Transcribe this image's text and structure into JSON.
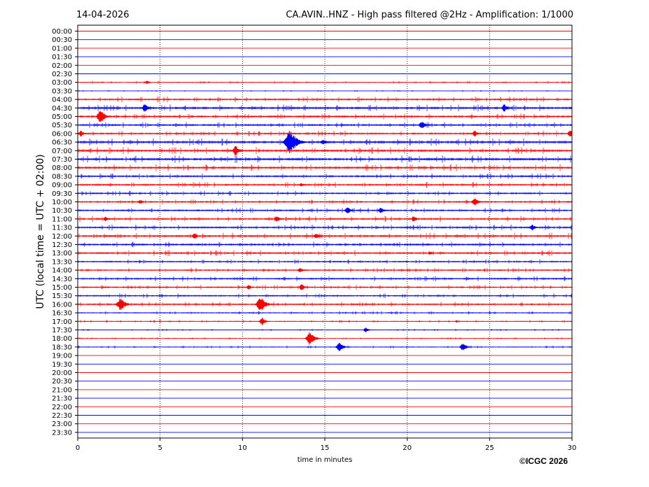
{
  "header": {
    "date": "14-04-2026",
    "title": "CA.AVIN..HNZ - High pass filtered @2Hz - Amplification: 1/1000"
  },
  "footer": {
    "copyright": "©ICGC 2026"
  },
  "colors": {
    "red": "#ff0000",
    "blue": "#0000ff",
    "grid": "#000000"
  },
  "chart_data": {
    "type": "line",
    "title": "CA.AVIN..HNZ - High pass filtered @2Hz - Amplification: 1/1000",
    "xlabel": "time in minutes",
    "ylabel": "UTC (local time = UTC + 02:00)",
    "xlim": [
      0,
      30
    ],
    "x_ticks": [
      0,
      5,
      10,
      15,
      20,
      25,
      30
    ],
    "grid": "vertical dotted lines at x ticks",
    "row_colors_alternate": [
      "red",
      "blue"
    ],
    "rows": [
      "00:00",
      "00:30",
      "01:00",
      "01:30",
      "02:00",
      "02:30",
      "03:00",
      "03:30",
      "04:00",
      "04:30",
      "05:00",
      "05:30",
      "06:00",
      "06:30",
      "07:00",
      "07:30",
      "08:00",
      "08:30",
      "09:00",
      "09:30",
      "10:00",
      "10:30",
      "11:00",
      "11:30",
      "12:00",
      "12:30",
      "13:00",
      "13:30",
      "14:00",
      "14:30",
      "15:00",
      "15:30",
      "16:00",
      "16:30",
      "17:00",
      "17:30",
      "18:00",
      "18:30",
      "19:00",
      "19:30",
      "20:00",
      "20:30",
      "21:00",
      "21:30",
      "22:00",
      "22:30",
      "23:00",
      "23:30"
    ],
    "row_activity": [
      0,
      0,
      0,
      0.1,
      0,
      0.1,
      0.5,
      0.3,
      1,
      1.2,
      1,
      1,
      1,
      1.3,
      1.2,
      1.3,
      1.2,
      1,
      1,
      0.9,
      0.9,
      0.9,
      1,
      1,
      1.1,
      1,
      1,
      0.8,
      0.8,
      0.9,
      0.8,
      0.8,
      0.9,
      0.6,
      0.5,
      0.4,
      0.4,
      0.5,
      0.1,
      0.05,
      0.1,
      0.05,
      0.05,
      0.05,
      0.05,
      0.05,
      0.05,
      0.05
    ],
    "events": [
      {
        "row": "03:00",
        "minute": 4.2,
        "amplitude": 0.3
      },
      {
        "row": "04:30",
        "minute": 4.1,
        "amplitude": 0.7
      },
      {
        "row": "04:30",
        "minute": 25.9,
        "amplitude": 0.6
      },
      {
        "row": "05:00",
        "minute": 1.4,
        "amplitude": 1.1
      },
      {
        "row": "05:30",
        "minute": 20.9,
        "amplitude": 0.7
      },
      {
        "row": "06:00",
        "minute": 0.2,
        "amplitude": 0.5
      },
      {
        "row": "06:00",
        "minute": 24.1,
        "amplitude": 0.5
      },
      {
        "row": "06:00",
        "minute": 29.9,
        "amplitude": 0.6
      },
      {
        "row": "06:30",
        "minute": 12.9,
        "amplitude": 2.0
      },
      {
        "row": "06:30",
        "minute": 14.9,
        "amplitude": 0.5
      },
      {
        "row": "07:00",
        "minute": 9.6,
        "amplitude": 0.8
      },
      {
        "row": "09:00",
        "minute": 13.6,
        "amplitude": 0.3
      },
      {
        "row": "10:00",
        "minute": 3.8,
        "amplitude": 0.4
      },
      {
        "row": "10:00",
        "minute": 24.1,
        "amplitude": 0.7
      },
      {
        "row": "10:30",
        "minute": 16.4,
        "amplitude": 0.6
      },
      {
        "row": "10:30",
        "minute": 18.4,
        "amplitude": 0.5
      },
      {
        "row": "11:00",
        "minute": 1.7,
        "amplitude": 0.4
      },
      {
        "row": "11:00",
        "minute": 12.1,
        "amplitude": 0.5
      },
      {
        "row": "11:00",
        "minute": 20.4,
        "amplitude": 0.5
      },
      {
        "row": "11:30",
        "minute": 27.6,
        "amplitude": 0.5
      },
      {
        "row": "12:00",
        "minute": 7.1,
        "amplitude": 0.5
      },
      {
        "row": "12:00",
        "minute": 14.5,
        "amplitude": 0.5
      },
      {
        "row": "13:00",
        "minute": 21.4,
        "amplitude": 0.3
      },
      {
        "row": "14:00",
        "minute": 13.5,
        "amplitude": 0.4
      },
      {
        "row": "15:00",
        "minute": 10.4,
        "amplitude": 0.4
      },
      {
        "row": "15:00",
        "minute": 13.6,
        "amplitude": 0.5
      },
      {
        "row": "16:00",
        "minute": 2.6,
        "amplitude": 1.1
      },
      {
        "row": "16:00",
        "minute": 11.1,
        "amplitude": 1.3
      },
      {
        "row": "17:00",
        "minute": 11.2,
        "amplitude": 0.6
      },
      {
        "row": "17:00",
        "minute": 23.0,
        "amplitude": 0.2
      },
      {
        "row": "17:30",
        "minute": 17.5,
        "amplitude": 0.4
      },
      {
        "row": "18:00",
        "minute": 14.1,
        "amplitude": 1.1
      },
      {
        "row": "18:30",
        "minute": 15.9,
        "amplitude": 0.8
      },
      {
        "row": "18:30",
        "minute": 23.4,
        "amplitude": 0.7
      }
    ]
  }
}
